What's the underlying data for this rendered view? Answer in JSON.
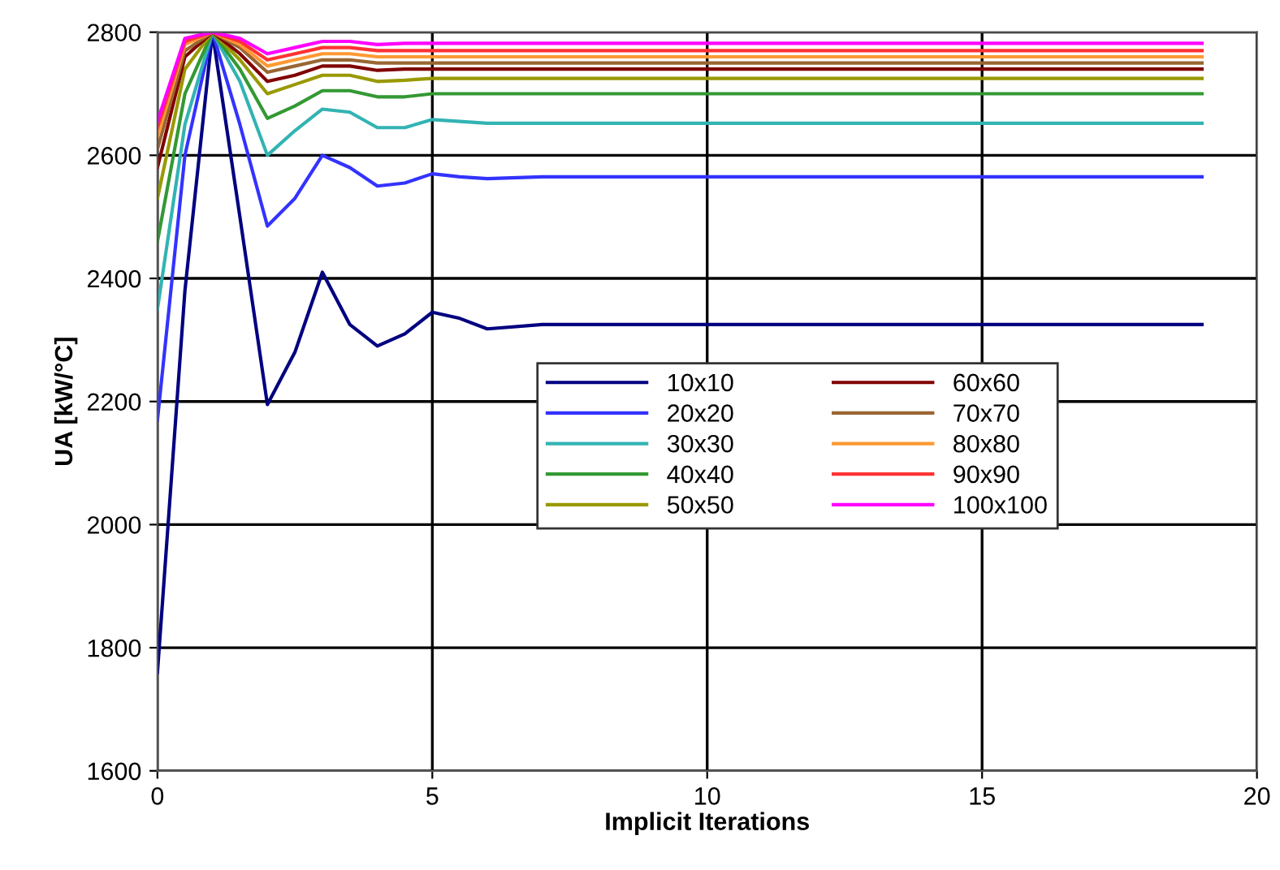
{
  "chart_data": {
    "type": "line",
    "xlabel": "Implicit Iterations",
    "ylabel": "UA [kW/°C]",
    "x": [
      0,
      0.5,
      1,
      1.5,
      2,
      2.5,
      3,
      3.5,
      4,
      4.5,
      5,
      5.5,
      6,
      7,
      8,
      9,
      10,
      11,
      12,
      13,
      14,
      15,
      16,
      17,
      18,
      19
    ],
    "series": [
      {
        "name": "10x10",
        "color": "#000080",
        "values": [
          1760,
          2380,
          2800,
          2500,
          2195,
          2280,
          2410,
          2325,
          2290,
          2310,
          2345,
          2335,
          2318,
          2325,
          2325,
          2325,
          2325,
          2325,
          2325,
          2325,
          2325,
          2325,
          2325,
          2325,
          2325,
          2325
        ]
      },
      {
        "name": "20x20",
        "color": "#3333ff",
        "values": [
          2170,
          2600,
          2800,
          2650,
          2485,
          2530,
          2600,
          2580,
          2550,
          2555,
          2570,
          2565,
          2562,
          2565,
          2565,
          2565,
          2565,
          2565,
          2565,
          2565,
          2565,
          2565,
          2565,
          2565,
          2565,
          2565
        ]
      },
      {
        "name": "30x30",
        "color": "#33b3b3",
        "values": [
          2350,
          2650,
          2800,
          2720,
          2600,
          2640,
          2675,
          2670,
          2645,
          2645,
          2658,
          2655,
          2652,
          2652,
          2652,
          2652,
          2652,
          2652,
          2652,
          2652,
          2652,
          2652,
          2652,
          2652,
          2652,
          2652
        ]
      },
      {
        "name": "40x40",
        "color": "#339933",
        "values": [
          2460,
          2700,
          2800,
          2740,
          2660,
          2680,
          2705,
          2705,
          2695,
          2695,
          2700,
          2700,
          2700,
          2700,
          2700,
          2700,
          2700,
          2700,
          2700,
          2700,
          2700,
          2700,
          2700,
          2700,
          2700,
          2700
        ]
      },
      {
        "name": "50x50",
        "color": "#999900",
        "values": [
          2530,
          2740,
          2800,
          2755,
          2700,
          2715,
          2730,
          2730,
          2720,
          2722,
          2725,
          2725,
          2725,
          2725,
          2725,
          2725,
          2725,
          2725,
          2725,
          2725,
          2725,
          2725,
          2725,
          2725,
          2725,
          2725
        ]
      },
      {
        "name": "60x60",
        "color": "#800000",
        "values": [
          2580,
          2760,
          2800,
          2765,
          2720,
          2730,
          2745,
          2745,
          2738,
          2740,
          2740,
          2740,
          2740,
          2740,
          2740,
          2740,
          2740,
          2740,
          2740,
          2740,
          2740,
          2740,
          2740,
          2740,
          2740,
          2740
        ]
      },
      {
        "name": "70x70",
        "color": "#996633",
        "values": [
          2610,
          2770,
          2800,
          2775,
          2735,
          2745,
          2755,
          2755,
          2750,
          2750,
          2750,
          2750,
          2750,
          2750,
          2750,
          2750,
          2750,
          2750,
          2750,
          2750,
          2750,
          2750,
          2750,
          2750,
          2750,
          2750
        ]
      },
      {
        "name": "80x80",
        "color": "#ff9933",
        "values": [
          2630,
          2780,
          2800,
          2780,
          2745,
          2755,
          2765,
          2765,
          2760,
          2760,
          2760,
          2760,
          2760,
          2760,
          2760,
          2760,
          2760,
          2760,
          2760,
          2760,
          2760,
          2760,
          2760,
          2760,
          2760,
          2760
        ]
      },
      {
        "name": "90x90",
        "color": "#ff3333",
        "values": [
          2645,
          2785,
          2800,
          2785,
          2755,
          2765,
          2775,
          2775,
          2770,
          2770,
          2770,
          2770,
          2770,
          2770,
          2770,
          2770,
          2770,
          2770,
          2770,
          2770,
          2770,
          2770,
          2770,
          2770,
          2770,
          2770
        ]
      },
      {
        "name": "100x100",
        "color": "#ff00ff",
        "values": [
          2655,
          2790,
          2800,
          2790,
          2765,
          2775,
          2785,
          2785,
          2780,
          2782,
          2782,
          2782,
          2782,
          2782,
          2782,
          2782,
          2782,
          2782,
          2782,
          2782,
          2782,
          2782,
          2782,
          2782,
          2782,
          2782
        ]
      }
    ],
    "xlim": [
      0,
      20
    ],
    "xticks": [
      0,
      5,
      10,
      15,
      20
    ],
    "ylim": [
      1600,
      2800
    ],
    "yticks": [
      1600,
      1800,
      2000,
      2200,
      2400,
      2600,
      2800
    ],
    "grid": true,
    "legend": "center right"
  }
}
